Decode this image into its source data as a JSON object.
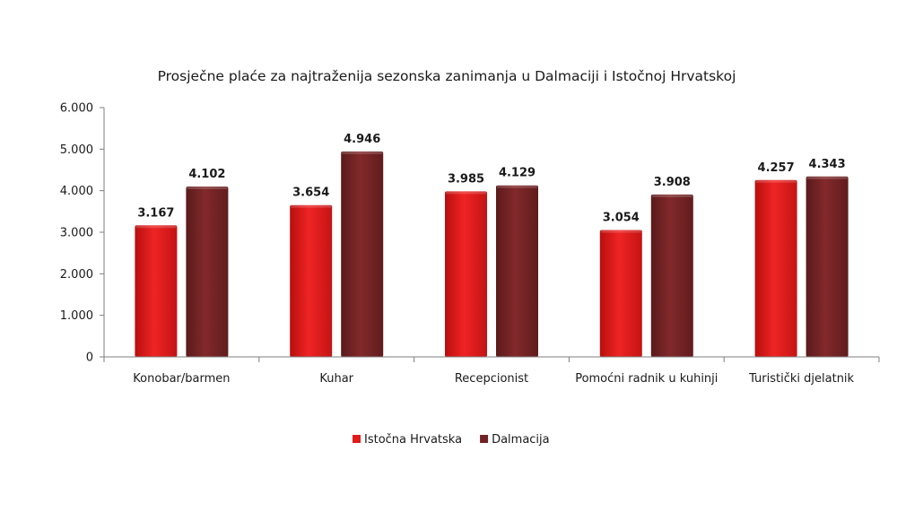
{
  "chart_data": {
    "type": "bar",
    "title": "Prosječne plaće za najtraženija sezonska zanimanja u Dalmaciji i Istočnoj Hrvatskoj",
    "categories": [
      "Konobar/barmen",
      "Kuhar",
      "Recepcionist",
      "Pomoćni radnik u kuhinji",
      "Turistički djelatnik"
    ],
    "series": [
      {
        "name": "Istočna Hrvatska",
        "color": "#e01b1b",
        "values": [
          3167,
          3654,
          3985,
          3054,
          4257
        ],
        "labels": [
          "3.167",
          "3.654",
          "3.985",
          "3.054",
          "4.257"
        ]
      },
      {
        "name": "Dalmacija",
        "color": "#722224",
        "values": [
          4102,
          4946,
          4129,
          3908,
          4343
        ],
        "labels": [
          "4.102",
          "4.946",
          "4.129",
          "3.908",
          "4.343"
        ]
      }
    ],
    "ylim": [
      0,
      6000
    ],
    "yticks": [
      0,
      1000,
      2000,
      3000,
      4000,
      5000,
      6000
    ],
    "ytick_labels": [
      "0",
      "1.000",
      "2.000",
      "3.000",
      "4.000",
      "5.000",
      "6.000"
    ],
    "legend_position": "bottom",
    "grid": false
  }
}
